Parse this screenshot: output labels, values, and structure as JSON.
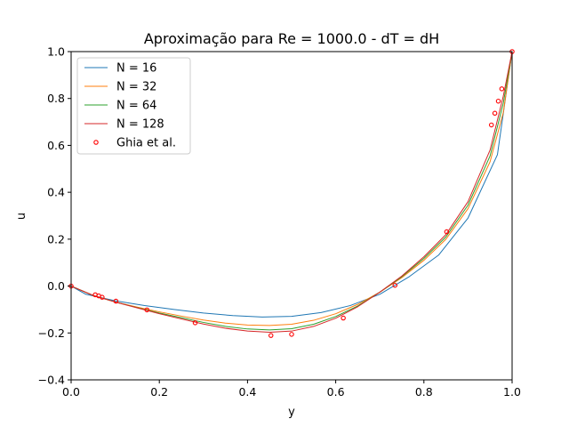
{
  "chart_data": {
    "type": "line",
    "title": "Aproximação para Re = 1000.0 - dT = dH",
    "xlabel": "y",
    "ylabel": "u",
    "xlim": [
      0.0,
      1.0
    ],
    "ylim": [
      -0.4,
      1.0
    ],
    "xticks": [
      "0.0",
      "0.2",
      "0.4",
      "0.6",
      "0.8",
      "1.0"
    ],
    "yticks": [
      "−0.4",
      "−0.2",
      "0.0",
      "0.2",
      "0.4",
      "0.6",
      "0.8",
      "1.0"
    ],
    "grid": false,
    "legend_position": "top-left",
    "series": [
      {
        "name": "N = 16",
        "color": "#1f77b4",
        "style": "line",
        "x": [
          0.0,
          0.0333,
          0.1,
          0.1667,
          0.2333,
          0.3,
          0.3667,
          0.4333,
          0.5,
          0.5667,
          0.6333,
          0.7,
          0.7667,
          0.8333,
          0.9,
          0.9667,
          1.0
        ],
        "y": [
          0.0,
          -0.035,
          -0.063,
          -0.083,
          -0.1,
          -0.115,
          -0.126,
          -0.132,
          -0.129,
          -0.113,
          -0.083,
          -0.035,
          0.04,
          0.132,
          0.29,
          0.56,
          1.0
        ]
      },
      {
        "name": "N = 32",
        "color": "#ff7f0e",
        "style": "line",
        "x": [
          0.0,
          0.05,
          0.1,
          0.15,
          0.2,
          0.25,
          0.3,
          0.35,
          0.4,
          0.45,
          0.5,
          0.55,
          0.6,
          0.65,
          0.7,
          0.75,
          0.8,
          0.85,
          0.9,
          0.95,
          0.98,
          1.0
        ],
        "y": [
          0.0,
          -0.04,
          -0.068,
          -0.09,
          -0.11,
          -0.128,
          -0.145,
          -0.158,
          -0.166,
          -0.168,
          -0.163,
          -0.146,
          -0.118,
          -0.078,
          -0.026,
          0.036,
          0.11,
          0.2,
          0.33,
          0.53,
          0.74,
          1.0
        ]
      },
      {
        "name": "N = 64",
        "color": "#2ca02c",
        "style": "line",
        "x": [
          0.0,
          0.05,
          0.1,
          0.15,
          0.2,
          0.25,
          0.3,
          0.35,
          0.4,
          0.45,
          0.5,
          0.55,
          0.6,
          0.65,
          0.7,
          0.75,
          0.8,
          0.85,
          0.9,
          0.95,
          0.98,
          1.0
        ],
        "y": [
          0.0,
          -0.04,
          -0.068,
          -0.092,
          -0.115,
          -0.135,
          -0.155,
          -0.172,
          -0.183,
          -0.187,
          -0.182,
          -0.163,
          -0.13,
          -0.085,
          -0.026,
          0.04,
          0.118,
          0.21,
          0.345,
          0.555,
          0.78,
          1.0
        ]
      },
      {
        "name": "N = 128",
        "color": "#d62728",
        "style": "line",
        "x": [
          0.0,
          0.05,
          0.1,
          0.15,
          0.2,
          0.25,
          0.3,
          0.35,
          0.4,
          0.45,
          0.5,
          0.55,
          0.6,
          0.65,
          0.7,
          0.75,
          0.8,
          0.85,
          0.9,
          0.95,
          0.98,
          1.0
        ],
        "y": [
          0.0,
          -0.04,
          -0.068,
          -0.093,
          -0.118,
          -0.14,
          -0.162,
          -0.18,
          -0.192,
          -0.197,
          -0.192,
          -0.172,
          -0.137,
          -0.088,
          -0.026,
          0.043,
          0.125,
          0.22,
          0.36,
          0.58,
          0.81,
          1.0
        ]
      },
      {
        "name": "Ghia et al.",
        "color": "#ff0000",
        "style": "scatter",
        "x": [
          0.0,
          0.0547,
          0.0625,
          0.0703,
          0.1016,
          0.1719,
          0.2813,
          0.4531,
          0.5,
          0.6172,
          0.7344,
          0.8516,
          0.9531,
          0.9609,
          0.9688,
          0.9766,
          1.0
        ],
        "y": [
          0.0,
          -0.0372,
          -0.0419,
          -0.0478,
          -0.0643,
          -0.1015,
          -0.1566,
          -0.2109,
          -0.2058,
          -0.1364,
          0.0033,
          0.2315,
          0.6872,
          0.7372,
          0.7887,
          0.8412,
          1.0
        ]
      }
    ]
  }
}
